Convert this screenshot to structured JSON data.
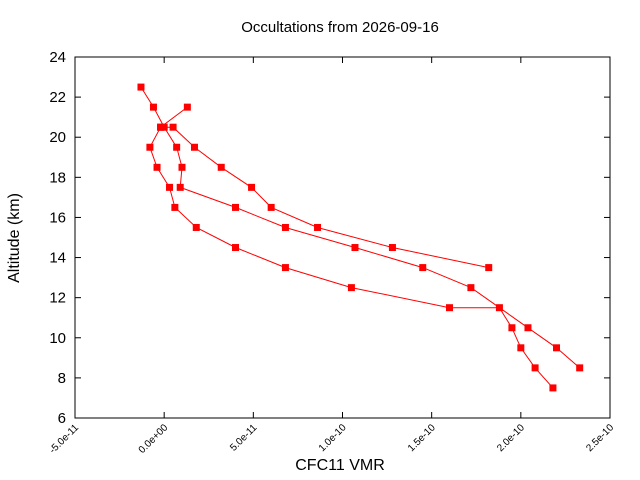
{
  "chart_data": {
    "type": "line",
    "title": "Occultations from 2026-09-16",
    "xlabel": "CFC11 VMR",
    "ylabel": "Altitude (km)",
    "xlim": [
      -5e-11,
      2.5e-10
    ],
    "ylim": [
      6,
      24
    ],
    "xticks": [
      {
        "value": -5e-11,
        "label": "-5.0e-11"
      },
      {
        "value": 0,
        "label": "0.0e+00"
      },
      {
        "value": 5e-11,
        "label": "5.0e-11"
      },
      {
        "value": 1e-10,
        "label": "1.0e-10"
      },
      {
        "value": 1.5e-10,
        "label": "1.5e-10"
      },
      {
        "value": 2e-10,
        "label": "2.0e-10"
      },
      {
        "value": 2.5e-10,
        "label": "2.5e-10"
      }
    ],
    "yticks": [
      {
        "value": 6,
        "label": "6"
      },
      {
        "value": 8,
        "label": "8"
      },
      {
        "value": 10,
        "label": "10"
      },
      {
        "value": 12,
        "label": "12"
      },
      {
        "value": 14,
        "label": "14"
      },
      {
        "value": 16,
        "label": "16"
      },
      {
        "value": 18,
        "label": "18"
      },
      {
        "value": 20,
        "label": "20"
      },
      {
        "value": 22,
        "label": "22"
      },
      {
        "value": 24,
        "label": "24"
      }
    ],
    "grid": false,
    "marker": "square",
    "color": "#ff0000",
    "series": [
      {
        "points": [
          [
            2.18e-10,
            7.5
          ],
          [
            2.08e-10,
            8.5
          ],
          [
            2e-10,
            9.5
          ],
          [
            1.95e-10,
            10.5
          ],
          [
            1.88e-10,
            11.5
          ],
          [
            1.6e-10,
            11.5
          ],
          [
            1.05e-10,
            12.5
          ],
          [
            6.8e-11,
            13.5
          ],
          [
            4e-11,
            14.5
          ],
          [
            1.8e-11,
            15.5
          ],
          [
            6e-12,
            16.5
          ],
          [
            3e-12,
            17.5
          ],
          [
            -4e-12,
            18.5
          ],
          [
            -8e-12,
            19.5
          ],
          [
            -2e-12,
            20.5
          ],
          [
            1.3e-11,
            21.5
          ]
        ]
      },
      {
        "points": [
          [
            2.33e-10,
            8.5
          ],
          [
            2.2e-10,
            9.5
          ],
          [
            2.04e-10,
            10.5
          ],
          [
            1.72e-10,
            12.5
          ],
          [
            1.45e-10,
            13.5
          ],
          [
            1.07e-10,
            14.5
          ],
          [
            6.8e-11,
            15.5
          ],
          [
            4e-11,
            16.5
          ],
          [
            9e-12,
            17.5
          ],
          [
            1e-11,
            18.5
          ],
          [
            7e-12,
            19.5
          ],
          [
            0.0,
            20.5
          ],
          [
            -6e-12,
            21.5
          ],
          [
            -1.3e-11,
            22.5
          ]
        ]
      },
      {
        "points": [
          [
            1.82e-10,
            13.5
          ],
          [
            1.28e-10,
            14.5
          ],
          [
            8.6e-11,
            15.5
          ],
          [
            6e-11,
            16.5
          ],
          [
            4.9e-11,
            17.5
          ],
          [
            3.2e-11,
            18.5
          ],
          [
            1.7e-11,
            19.5
          ],
          [
            5e-12,
            20.5
          ],
          [
            -2e-12,
            20.5
          ]
        ]
      }
    ]
  }
}
